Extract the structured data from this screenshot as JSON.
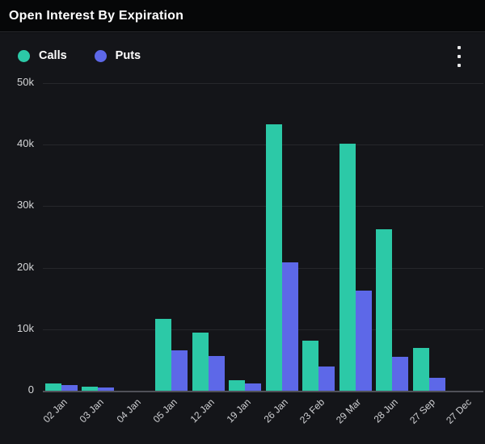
{
  "header": {
    "title": "Open Interest By Expiration"
  },
  "legend": {
    "items": [
      {
        "label": "Calls",
        "color": "#2cc9a7"
      },
      {
        "label": "Puts",
        "color": "#5d68e8"
      }
    ]
  },
  "menu": {
    "more_options_icon": "kebab-vertical-dots"
  },
  "chart_data": {
    "type": "bar",
    "title": "Open Interest By Expiration",
    "categories": [
      "02 Jan",
      "03 Jan",
      "04 Jan",
      "05 Jan",
      "12 Jan",
      "19 Jan",
      "26 Jan",
      "23 Feb",
      "29 Mar",
      "28 Jun",
      "27 Sep",
      "27 Dec"
    ],
    "series": [
      {
        "name": "Calls",
        "color": "#2cc9a7",
        "values": [
          1200,
          600,
          0,
          11700,
          9400,
          1700,
          43300,
          8100,
          40100,
          26200,
          6900,
          0
        ]
      },
      {
        "name": "Puts",
        "color": "#5d68e8",
        "values": [
          900,
          500,
          0,
          6600,
          5600,
          1200,
          20900,
          3900,
          16300,
          5500,
          2100,
          0
        ]
      }
    ],
    "xlabel": "",
    "ylabel": "",
    "ylim": [
      0,
      50000
    ],
    "yticks": [
      "50k",
      "40k",
      "30k",
      "20k",
      "10k",
      "0"
    ],
    "grid": true,
    "legend_position": "top-left",
    "background": "#141519"
  }
}
